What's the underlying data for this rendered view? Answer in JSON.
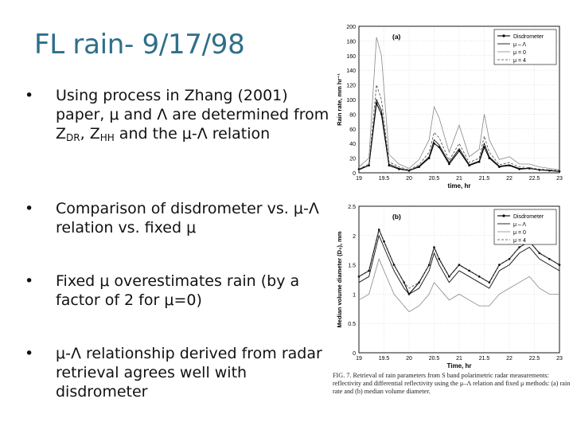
{
  "slide": {
    "title": "FL rain- 9/17/98",
    "bullets": [
      {
        "parts": [
          [
            "Using process in Zhang (2001) paper, μ and Λ are determined from Z",
            ""
          ],
          [
            "DR",
            "sub"
          ],
          [
            ", Z",
            ""
          ],
          [
            "HH",
            "sub"
          ],
          [
            " and the μ-Λ relation",
            ""
          ]
        ]
      },
      {
        "parts": [
          [
            "Comparison of disdrometer vs. μ-Λ relation vs. fixed μ",
            ""
          ]
        ]
      },
      {
        "parts": [
          [
            "Fixed μ overestimates rain (by a factor of 2 for μ=0)",
            ""
          ]
        ]
      },
      {
        "parts": [
          [
            "μ-Λ relationship derived from radar retrieval agrees well with disdrometer",
            ""
          ]
        ]
      }
    ],
    "bullet_char": "•"
  },
  "figure": {
    "caption": "FIG. 7. Retrieval of rain parameters from S band polarimetric radar measurements: reflectivity and differential reflectivity using the μ–Λ relation and fixed μ methods: (a) rain rate and (b) median volume diameter.",
    "panels": [
      {
        "panel_label": "(a)",
        "ylabel": "Rain rate, mm hr⁻¹",
        "xlabel": "time, hr",
        "yticks": [
          "0",
          "20",
          "40",
          "60",
          "80",
          "100",
          "120",
          "140",
          "160",
          "180",
          "200"
        ],
        "xticks": [
          "19",
          "19.5",
          "20",
          "20.5",
          "21",
          "21.5",
          "22",
          "22.5",
          "23"
        ],
        "legend": [
          "Disdrometer",
          "μ – Λ",
          "μ = 0",
          "μ = 4"
        ]
      },
      {
        "panel_label": "(b)",
        "ylabel": "Median volume diameter (D₀), mm",
        "xlabel": "Time, hr",
        "yticks": [
          "0",
          "0.5",
          "1",
          "1.5",
          "2",
          "2.5"
        ],
        "xticks": [
          "19",
          "19.5",
          "20",
          "20.5",
          "21",
          "21.5",
          "22",
          "22.5",
          "23"
        ],
        "legend": [
          "Disdrometer",
          "μ – Λ",
          "μ = 0",
          "μ = 4"
        ]
      }
    ],
    "chart_data": [
      {
        "type": "line",
        "title": "",
        "xlabel": "time, hr",
        "ylabel": "Rain rate, mm hr⁻¹",
        "xlim": [
          19,
          23
        ],
        "ylim": [
          0,
          200
        ],
        "grid": true,
        "legend_position": "top-right",
        "series": [
          {
            "name": "Disdrometer",
            "x": [
              19,
              19.2,
              19.35,
              19.45,
              19.6,
              19.8,
              20,
              20.2,
              20.4,
              20.5,
              20.6,
              20.8,
              21,
              21.2,
              21.4,
              21.5,
              21.6,
              21.8,
              22,
              22.2,
              22.4,
              22.6,
              22.8,
              23
            ],
            "y": [
              5,
              10,
              95,
              80,
              10,
              5,
              3,
              8,
              20,
              40,
              35,
              12,
              30,
              10,
              15,
              35,
              20,
              8,
              10,
              5,
              6,
              4,
              3,
              2
            ]
          },
          {
            "name": "μ – Λ",
            "x": [
              19,
              19.2,
              19.35,
              19.45,
              19.6,
              19.8,
              20,
              20.2,
              20.4,
              20.5,
              20.6,
              20.8,
              21,
              21.2,
              21.4,
              21.5,
              21.6,
              21.8,
              22,
              22.2,
              22.4,
              22.6,
              22.8,
              23
            ],
            "y": [
              4,
              10,
              100,
              85,
              12,
              6,
              3,
              9,
              22,
              45,
              38,
              14,
              33,
              11,
              16,
              40,
              22,
              9,
              11,
              6,
              6,
              4,
              3,
              2
            ]
          },
          {
            "name": "μ = 0",
            "x": [
              19,
              19.2,
              19.35,
              19.45,
              19.6,
              19.8,
              20,
              20.2,
              20.4,
              20.5,
              20.6,
              20.8,
              21,
              21.2,
              21.4,
              21.5,
              21.6,
              21.8,
              22,
              22.2,
              22.4,
              22.6,
              22.8,
              23
            ],
            "y": [
              8,
              20,
              185,
              160,
              25,
              12,
              6,
              18,
              45,
              90,
              75,
              28,
              65,
              22,
              32,
              80,
              45,
              18,
              22,
              12,
              12,
              8,
              6,
              4
            ]
          },
          {
            "name": "μ = 4",
            "x": [
              19,
              19.2,
              19.35,
              19.45,
              19.6,
              19.8,
              20,
              20.2,
              20.4,
              20.5,
              20.6,
              20.8,
              21,
              21.2,
              21.4,
              21.5,
              21.6,
              21.8,
              22,
              22.2,
              22.4,
              22.6,
              22.8,
              23
            ],
            "y": [
              5,
              12,
              120,
              100,
              15,
              8,
              4,
              11,
              28,
              55,
              48,
              17,
              40,
              14,
              20,
              50,
              28,
              11,
              14,
              8,
              7,
              5,
              4,
              3
            ]
          }
        ]
      },
      {
        "type": "line",
        "title": "",
        "xlabel": "Time, hr",
        "ylabel": "Median volume diameter (D₀), mm",
        "xlim": [
          19,
          23
        ],
        "ylim": [
          0,
          2.5
        ],
        "grid": true,
        "legend_position": "top-right",
        "series": [
          {
            "name": "Disdrometer",
            "x": [
              19,
              19.2,
              19.4,
              19.5,
              19.7,
              19.9,
              20,
              20.2,
              20.4,
              20.5,
              20.6,
              20.8,
              21,
              21.2,
              21.4,
              21.6,
              21.8,
              22,
              22.2,
              22.4,
              22.6,
              22.8,
              23
            ],
            "y": [
              1.3,
              1.4,
              2.1,
              1.9,
              1.5,
              1.2,
              1.0,
              1.2,
              1.5,
              1.8,
              1.6,
              1.3,
              1.5,
              1.4,
              1.3,
              1.2,
              1.5,
              1.6,
              1.8,
              1.9,
              1.7,
              1.6,
              1.5
            ]
          },
          {
            "name": "μ – Λ",
            "x": [
              19,
              19.2,
              19.4,
              19.5,
              19.7,
              19.9,
              20,
              20.2,
              20.4,
              20.5,
              20.6,
              20.8,
              21,
              21.2,
              21.4,
              21.6,
              21.8,
              22,
              22.2,
              22.4,
              22.6,
              22.8,
              23
            ],
            "y": [
              1.2,
              1.3,
              2.0,
              1.8,
              1.4,
              1.1,
              1.0,
              1.1,
              1.4,
              1.7,
              1.5,
              1.2,
              1.4,
              1.3,
              1.2,
              1.1,
              1.4,
              1.5,
              1.7,
              1.8,
              1.6,
              1.5,
              1.4
            ]
          },
          {
            "name": "μ = 0",
            "x": [
              19,
              19.2,
              19.4,
              19.5,
              19.7,
              19.9,
              20,
              20.2,
              20.4,
              20.5,
              20.6,
              20.8,
              21,
              21.2,
              21.4,
              21.6,
              21.8,
              22,
              22.2,
              22.4,
              22.6,
              22.8,
              23
            ],
            "y": [
              0.9,
              1.0,
              1.6,
              1.4,
              1.0,
              0.8,
              0.7,
              0.8,
              1.0,
              1.2,
              1.1,
              0.9,
              1.0,
              0.9,
              0.8,
              0.8,
              1.0,
              1.1,
              1.2,
              1.3,
              1.1,
              1.0,
              1.0
            ]
          },
          {
            "name": "μ = 4",
            "x": [
              19,
              19.2,
              19.4,
              19.5,
              19.7,
              19.9,
              20,
              20.2,
              20.4,
              20.5,
              20.6,
              20.8,
              21,
              21.2,
              21.4,
              21.6,
              21.8,
              22,
              22.2,
              22.4,
              22.6,
              22.8,
              23
            ],
            "y": [
              1.3,
              1.4,
              2.1,
              1.9,
              1.5,
              1.2,
              1.1,
              1.2,
              1.5,
              1.8,
              1.6,
              1.3,
              1.5,
              1.4,
              1.3,
              1.2,
              1.5,
              1.6,
              1.8,
              1.9,
              1.7,
              1.6,
              1.5
            ]
          }
        ]
      }
    ]
  }
}
